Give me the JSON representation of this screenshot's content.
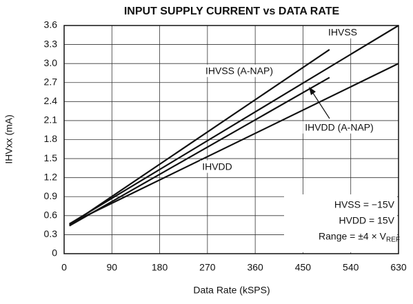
{
  "chart_data": {
    "type": "line",
    "title": "INPUT SUPPLY CURRENT vs DATA RATE",
    "x_label": "Data Rate (kSPS)",
    "y_label": "IHVxx (mA)",
    "xlim": [
      0,
      630
    ],
    "xticks": [
      0,
      90,
      180,
      270,
      360,
      450,
      540,
      630
    ],
    "ylim": [
      0,
      3.6
    ],
    "yticks": [
      0,
      0.3,
      0.6,
      0.9,
      1.2,
      1.5,
      1.8,
      2.1,
      2.4,
      2.7,
      {
        "value": 3,
        "label": "3.0"
      },
      3.3,
      3.6
    ],
    "grid": true,
    "series": [
      {
        "name": "IHVSS",
        "color": "#111111",
        "x": [
          10,
          630
        ],
        "values": [
          0.47,
          3.6
        ]
      },
      {
        "name": "IHVSS (A-NAP)",
        "color": "#111111",
        "x": [
          10,
          500
        ],
        "values": [
          0.45,
          3.22
        ]
      },
      {
        "name": "IHVDD (A-NAP)",
        "color": "#111111",
        "x": [
          10,
          500
        ],
        "values": [
          0.44,
          2.78
        ]
      },
      {
        "name": "IHVDD",
        "color": "#111111",
        "x": [
          10,
          630
        ],
        "values": [
          0.47,
          3.0
        ]
      }
    ],
    "annotations": [
      "HVSS = −15V",
      "HVDD = 15V",
      "Range = ±4 × V",
      "REF"
    ]
  }
}
